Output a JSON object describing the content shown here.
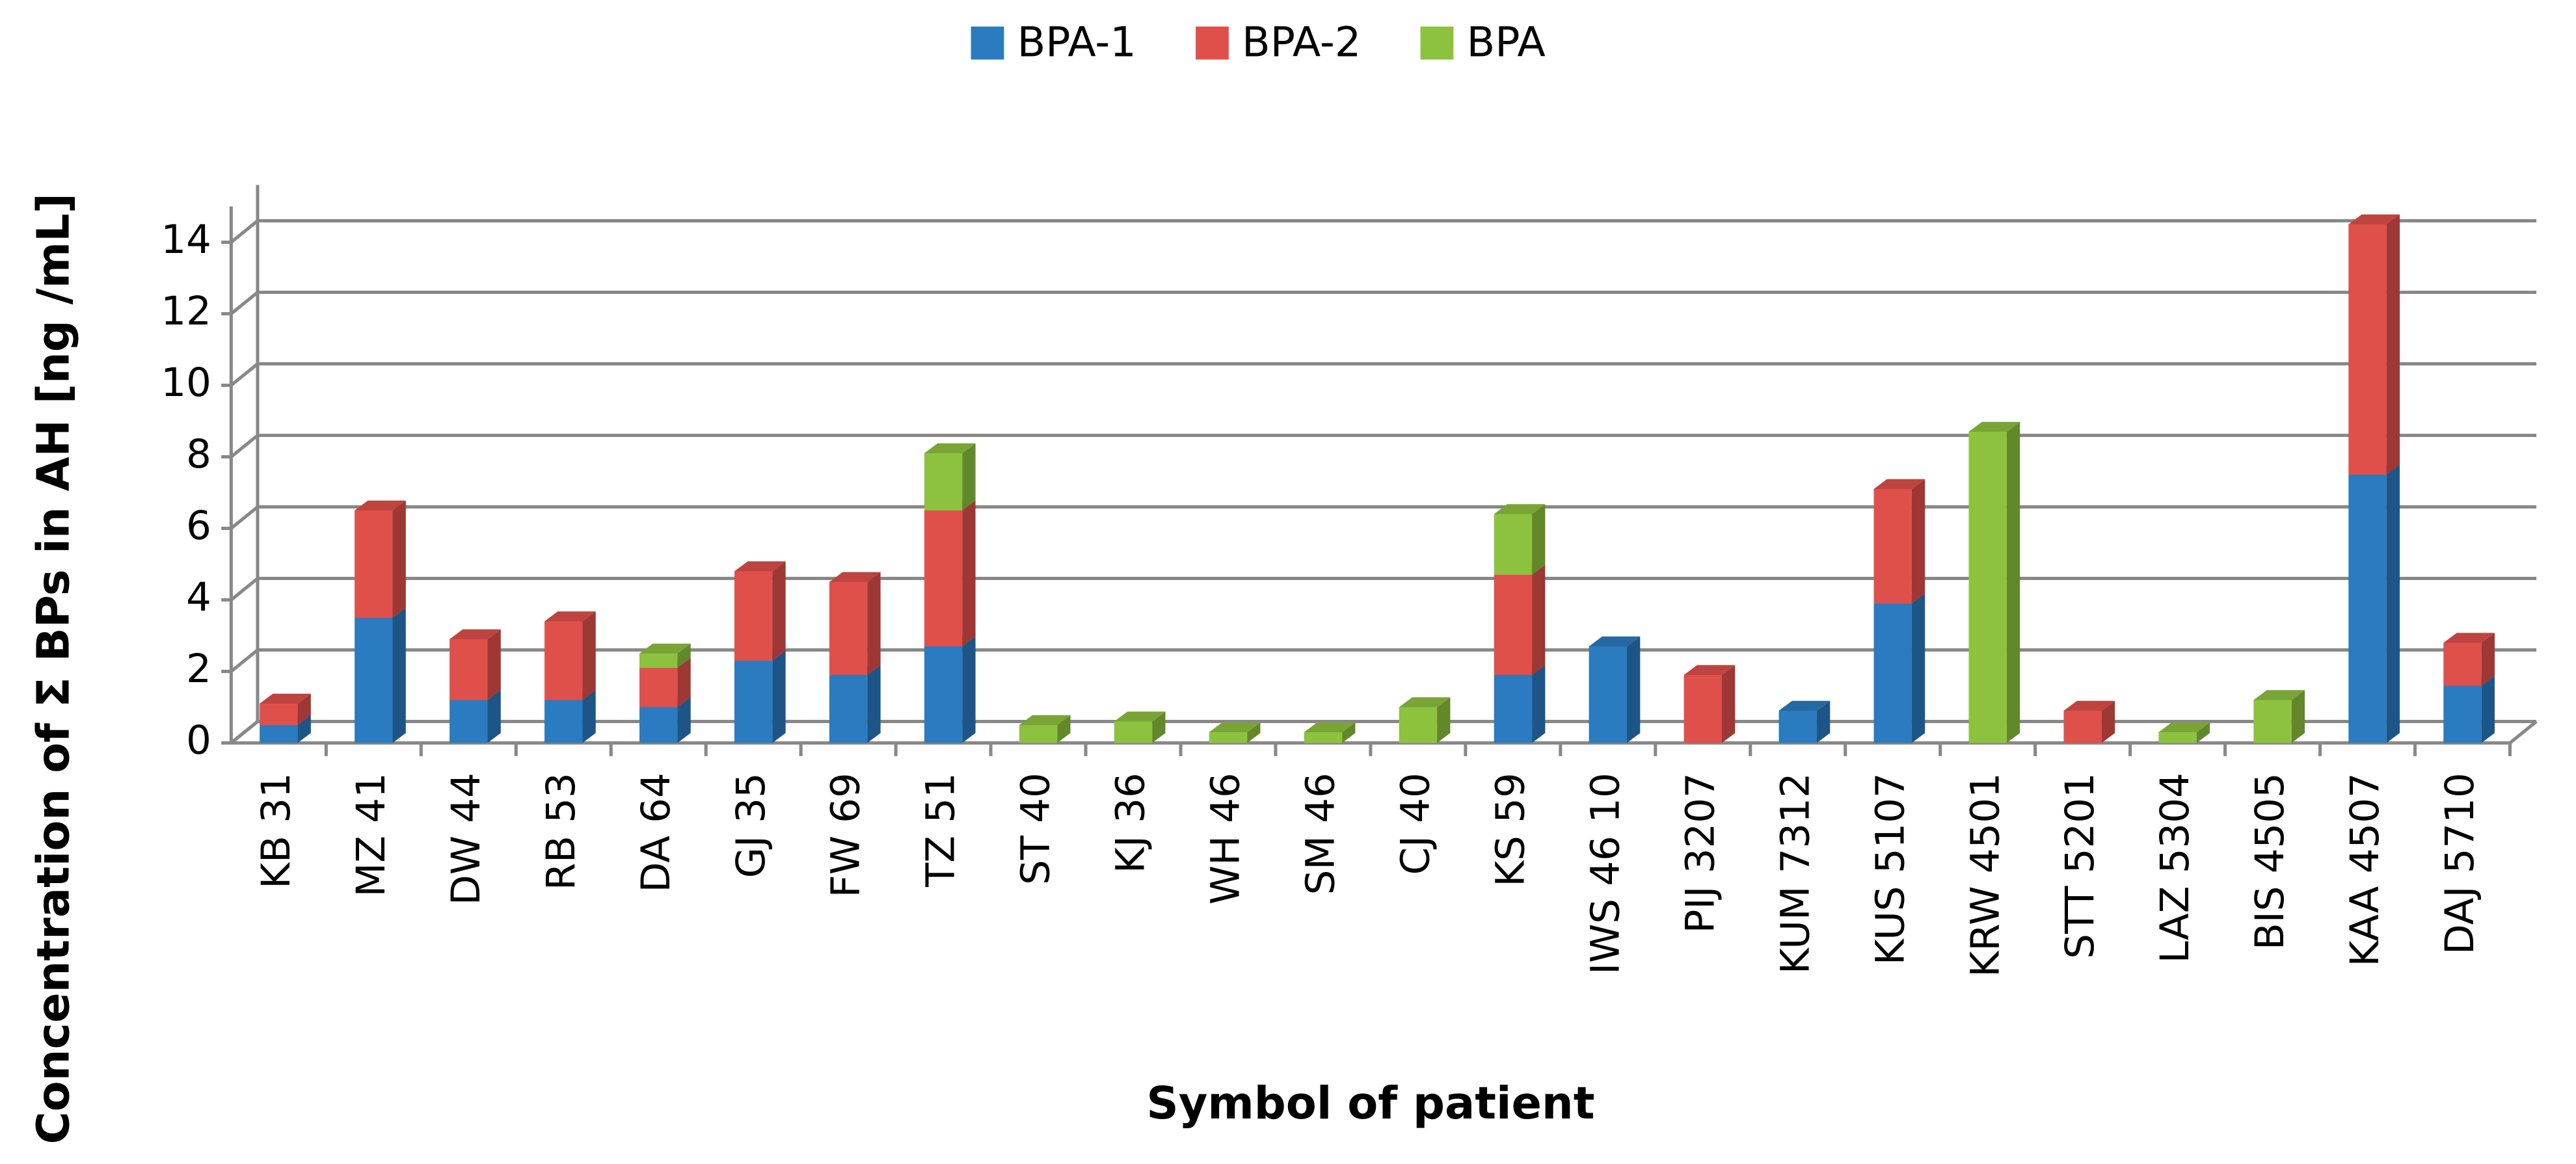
{
  "chart_data": {
    "type": "stacked-bar-3d",
    "x_label": "Symbol of patient",
    "y_label": "Concentration of Σ BPs in AH [ng /mL]",
    "categories": [
      "KB 31",
      "MZ 41",
      "DW 44",
      "RB 53",
      "DA 64",
      "GJ 35",
      "FW 69",
      "TZ 51",
      "ST 40",
      "KJ 36",
      "WH 46",
      "SM 46",
      "CJ 40",
      "KS 59",
      "IWS 46 10",
      "PIJ 3207",
      "KUM 7312",
      "KUS 5107",
      "KRW 4501",
      "STT 5201",
      "LAZ 5304",
      "BIS 4505",
      "KAA 4507",
      "DAJ 5710"
    ],
    "series": [
      {
        "name": "BPA-1",
        "color": "#2a7bbf",
        "values": [
          0.5,
          3.5,
          1.2,
          1.2,
          1.0,
          2.3,
          1.9,
          2.7,
          0,
          0,
          0,
          0,
          0,
          1.9,
          2.7,
          0,
          0.9,
          3.9,
          0,
          0,
          0,
          0,
          7.5,
          1.6
        ]
      },
      {
        "name": "BPA-2",
        "color": "#e0504b",
        "values": [
          0.6,
          3.0,
          1.7,
          2.2,
          1.1,
          2.5,
          2.6,
          3.8,
          0,
          0,
          0,
          0,
          0,
          2.8,
          0,
          1.9,
          0,
          3.2,
          0,
          0.9,
          0,
          0,
          7.0,
          1.2
        ]
      },
      {
        "name": "BPA",
        "color": "#8dc23f",
        "values": [
          0,
          0,
          0,
          0,
          0.4,
          0,
          0,
          1.6,
          0.5,
          0.6,
          0.3,
          0.3,
          1.0,
          1.7,
          0,
          0,
          0,
          0,
          8.7,
          0,
          0.3,
          1.2,
          0,
          0
        ]
      }
    ],
    "ylim": [
      0,
      15
    ],
    "yticks": [
      0,
      2,
      4,
      6,
      8,
      10,
      12,
      14
    ],
    "grid": true,
    "legend": "top"
  }
}
